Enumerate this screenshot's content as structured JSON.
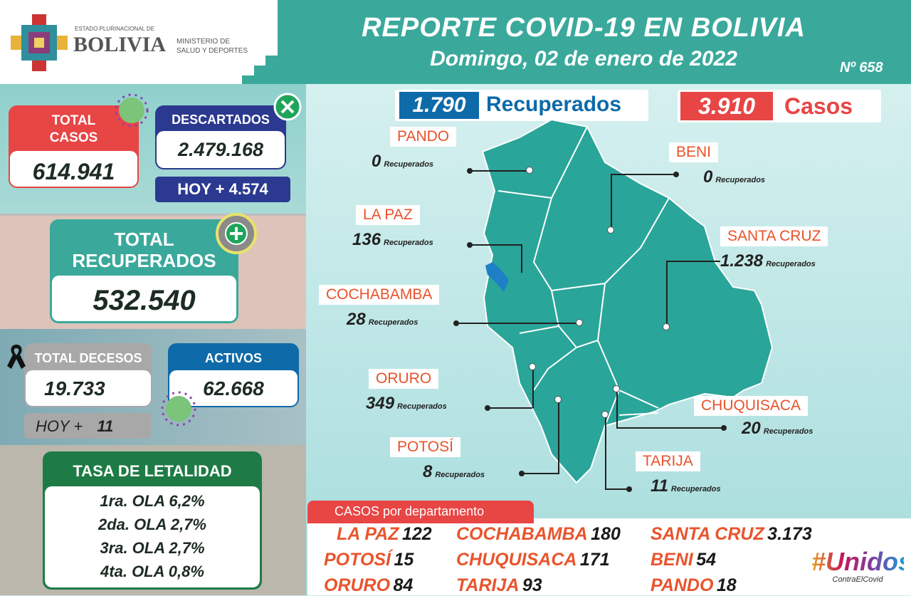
{
  "header": {
    "org_small": "ESTADO PLURINACIONAL DE",
    "org_big": "BOLIVIA",
    "ministry": "MINISTERIO DE SALUD Y DEPORTES",
    "title": "REPORTE COVID-19 EN BOLIVIA",
    "date": "Domingo, 02 de enero de 2022",
    "report_number": "Nº 658"
  },
  "colors": {
    "teal": "#3aa99c",
    "red": "#e84545",
    "navy": "#2b3990",
    "green": "#1e7b45",
    "blue": "#0e6aa8",
    "orange": "#e8522b"
  },
  "total_casos": {
    "label": "TOTAL CASOS",
    "value": "614.941"
  },
  "descartados": {
    "label": "DESCARTADOS",
    "value": "2.479.168",
    "today": "HOY + 4.574"
  },
  "total_recuperados": {
    "label": "TOTAL RECUPERADOS",
    "value": "532.540"
  },
  "decesos": {
    "label": "TOTAL DECESOS",
    "value": "19.733",
    "today_label": "HOY +",
    "today_value": "11"
  },
  "activos": {
    "label": "ACTIVOS",
    "value": "62.668"
  },
  "letalidad": {
    "title": "TASA DE LETALIDAD",
    "rows": [
      "1ra. OLA 6,2%",
      "2da. OLA 2,7%",
      "3ra. OLA 2,7%",
      "4ta. OLA 0,8%"
    ]
  },
  "daily": {
    "recuperados_value": "1.790",
    "recuperados_label": "Recuperados",
    "casos_value": "3.910",
    "casos_label": "Casos"
  },
  "recovered_unit": "Recuperados",
  "departments": [
    {
      "name": "PANDO",
      "recovered": "0"
    },
    {
      "name": "BENI",
      "recovered": "0"
    },
    {
      "name": "LA PAZ",
      "recovered": "136"
    },
    {
      "name": "SANTA CRUZ",
      "recovered": "1.238"
    },
    {
      "name": "COCHABAMBA",
      "recovered": "28"
    },
    {
      "name": "ORURO",
      "recovered": "349"
    },
    {
      "name": "CHUQUISACA",
      "recovered": "20"
    },
    {
      "name": "POTOSÍ",
      "recovered": "8"
    },
    {
      "name": "TARIJA",
      "recovered": "11"
    }
  ],
  "cases_by_department": {
    "title": "CASOS por departamento",
    "rows": [
      [
        {
          "name": "LA PAZ",
          "value": "122"
        },
        {
          "name": "COCHABAMBA",
          "value": "180"
        },
        {
          "name": "SANTA CRUZ",
          "value": "3.173"
        }
      ],
      [
        {
          "name": "POTOSÍ",
          "value": "15"
        },
        {
          "name": "CHUQUISACA",
          "value": "171"
        },
        {
          "name": "BENI",
          "value": "54"
        }
      ],
      [
        {
          "name": "ORURO",
          "value": "84"
        },
        {
          "name": "TARIJA",
          "value": "93"
        },
        {
          "name": "PANDO",
          "value": "18"
        }
      ]
    ]
  },
  "campaign": {
    "hashtag": "#Unidos",
    "sub": "ContraElCovid"
  }
}
